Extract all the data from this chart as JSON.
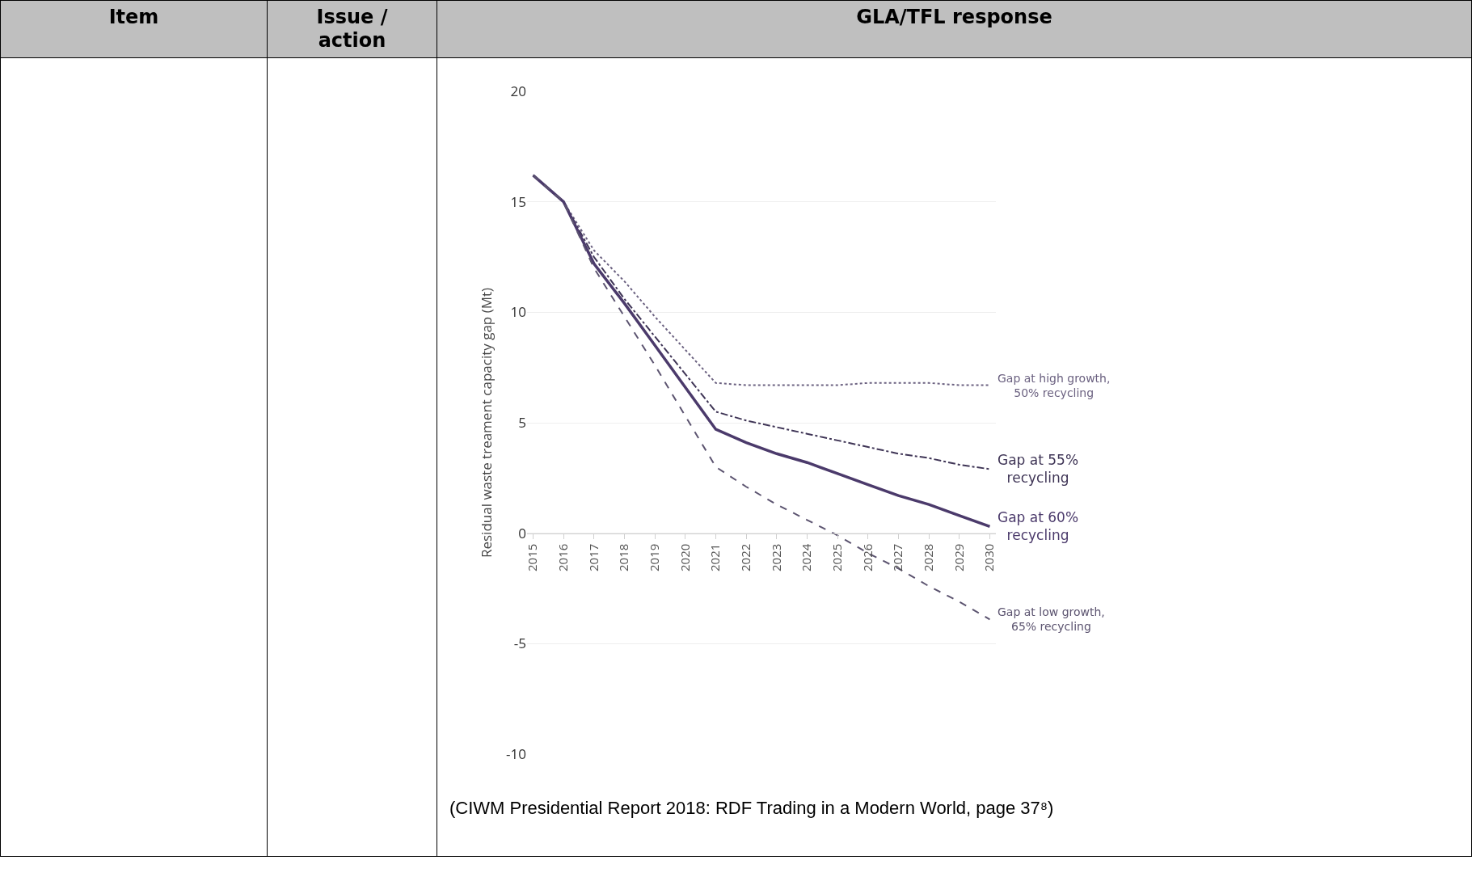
{
  "chart_data": {
    "type": "line",
    "ylabel": "Residual waste treament capacity gap (Mt)",
    "categories": [
      "2015",
      "2016",
      "2017",
      "2018",
      "2019",
      "2020",
      "2021",
      "2022",
      "2023",
      "2024",
      "2025",
      "2026",
      "2027",
      "2028",
      "2029",
      "2030"
    ],
    "series": [
      {
        "name": "Gap at high growth,\n50% recycling",
        "color": "#6b6180",
        "line_style": "dotted",
        "values": [
          16.2,
          15.0,
          12.8,
          11.4,
          9.8,
          8.3,
          6.8,
          6.7,
          6.7,
          6.7,
          6.7,
          6.8,
          6.8,
          6.8,
          6.7,
          6.7
        ]
      },
      {
        "name": "Gap at 55%\nrecycling",
        "color": "#3f3556",
        "line_style": "dashdot",
        "values": [
          16.2,
          15.0,
          12.5,
          10.6,
          8.9,
          7.2,
          5.5,
          5.1,
          4.8,
          4.5,
          4.2,
          3.9,
          3.6,
          3.4,
          3.1,
          2.9
        ]
      },
      {
        "name": "Gap at 60%\nrecycling",
        "color": "#4b3a6b",
        "line_style": "solid",
        "values": [
          16.2,
          15.0,
          12.2,
          10.4,
          8.5,
          6.6,
          4.7,
          4.1,
          3.6,
          3.2,
          2.7,
          2.2,
          1.7,
          1.3,
          0.8,
          0.3
        ]
      },
      {
        "name": "Gap at low growth,\n65% recycling",
        "color": "#5c5470",
        "line_style": "dashed",
        "values": [
          16.2,
          15.0,
          12.0,
          9.8,
          7.6,
          5.3,
          3.0,
          2.1,
          1.3,
          0.6,
          -0.1,
          -0.9,
          -1.6,
          -2.4,
          -3.1,
          -3.9
        ]
      }
    ],
    "ylim": [
      -10,
      20
    ],
    "yticks": [
      -10,
      -5,
      0,
      5,
      10,
      15,
      20
    ],
    "grid": "y",
    "legend": false,
    "annotations": [
      "Item",
      "Issue /\naction",
      "GLA/TFL response",
      "(CIWM Presidential Report 2018: RDF Trading in a Modern World, page 37⁸)"
    ]
  }
}
